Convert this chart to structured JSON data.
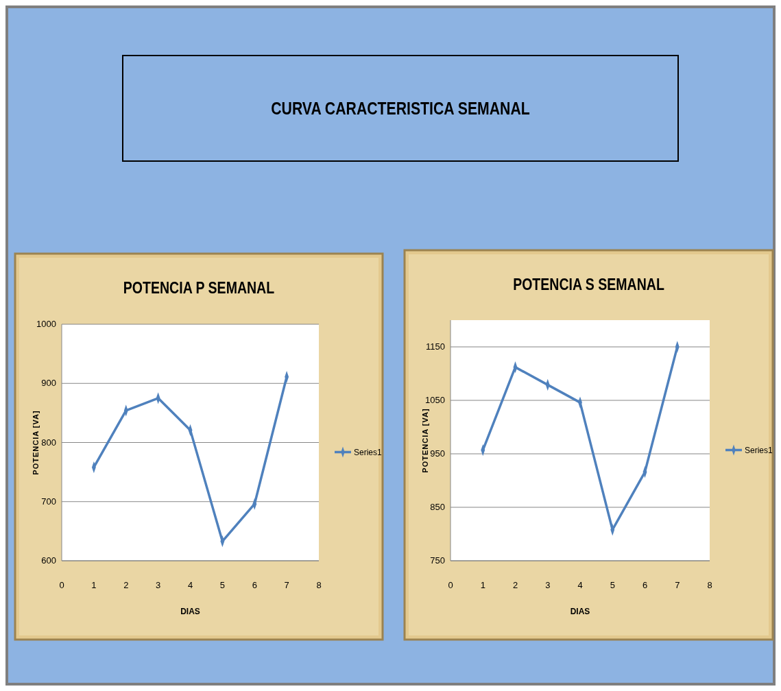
{
  "chart_data": [
    {
      "type": "other",
      "title": "CURVA CARACTERISTICA SEMANAL"
    },
    {
      "type": "line",
      "title": "POTENCIA P SEMANAL",
      "xlabel": "DIAS",
      "ylabel": "POTENCIA [VA]",
      "x": [
        1,
        2,
        3,
        4,
        5,
        6,
        7
      ],
      "series": [
        {
          "name": "Series1",
          "color": "#4f81bd",
          "values": [
            758,
            854,
            875,
            821,
            633,
            696,
            911
          ]
        }
      ],
      "xlim": [
        0,
        8
      ],
      "xticks": [
        0,
        1,
        2,
        3,
        4,
        5,
        6,
        7,
        8
      ],
      "ylim": [
        600,
        1000
      ],
      "yticks": [
        600,
        700,
        800,
        900,
        1000
      ],
      "grid": "y",
      "legend": "right",
      "marker": "diamond"
    },
    {
      "type": "line",
      "title": "POTENCIA S SEMANAL",
      "xlabel": "DIAS",
      "ylabel": "POTENCIA [VA]",
      "x": [
        1,
        2,
        3,
        4,
        5,
        6,
        7
      ],
      "series": [
        {
          "name": "Series1",
          "color": "#4f81bd",
          "values": [
            957,
            1112,
            1079,
            1046,
            808,
            916,
            1150
          ]
        }
      ],
      "xlim": [
        0,
        8
      ],
      "xticks": [
        0,
        1,
        2,
        3,
        4,
        5,
        6,
        7,
        8
      ],
      "ylim": [
        750,
        1200
      ],
      "yticks": [
        750,
        850,
        950,
        1050,
        1150
      ],
      "grid": "y",
      "legend": "right",
      "marker": "diamond"
    }
  ]
}
